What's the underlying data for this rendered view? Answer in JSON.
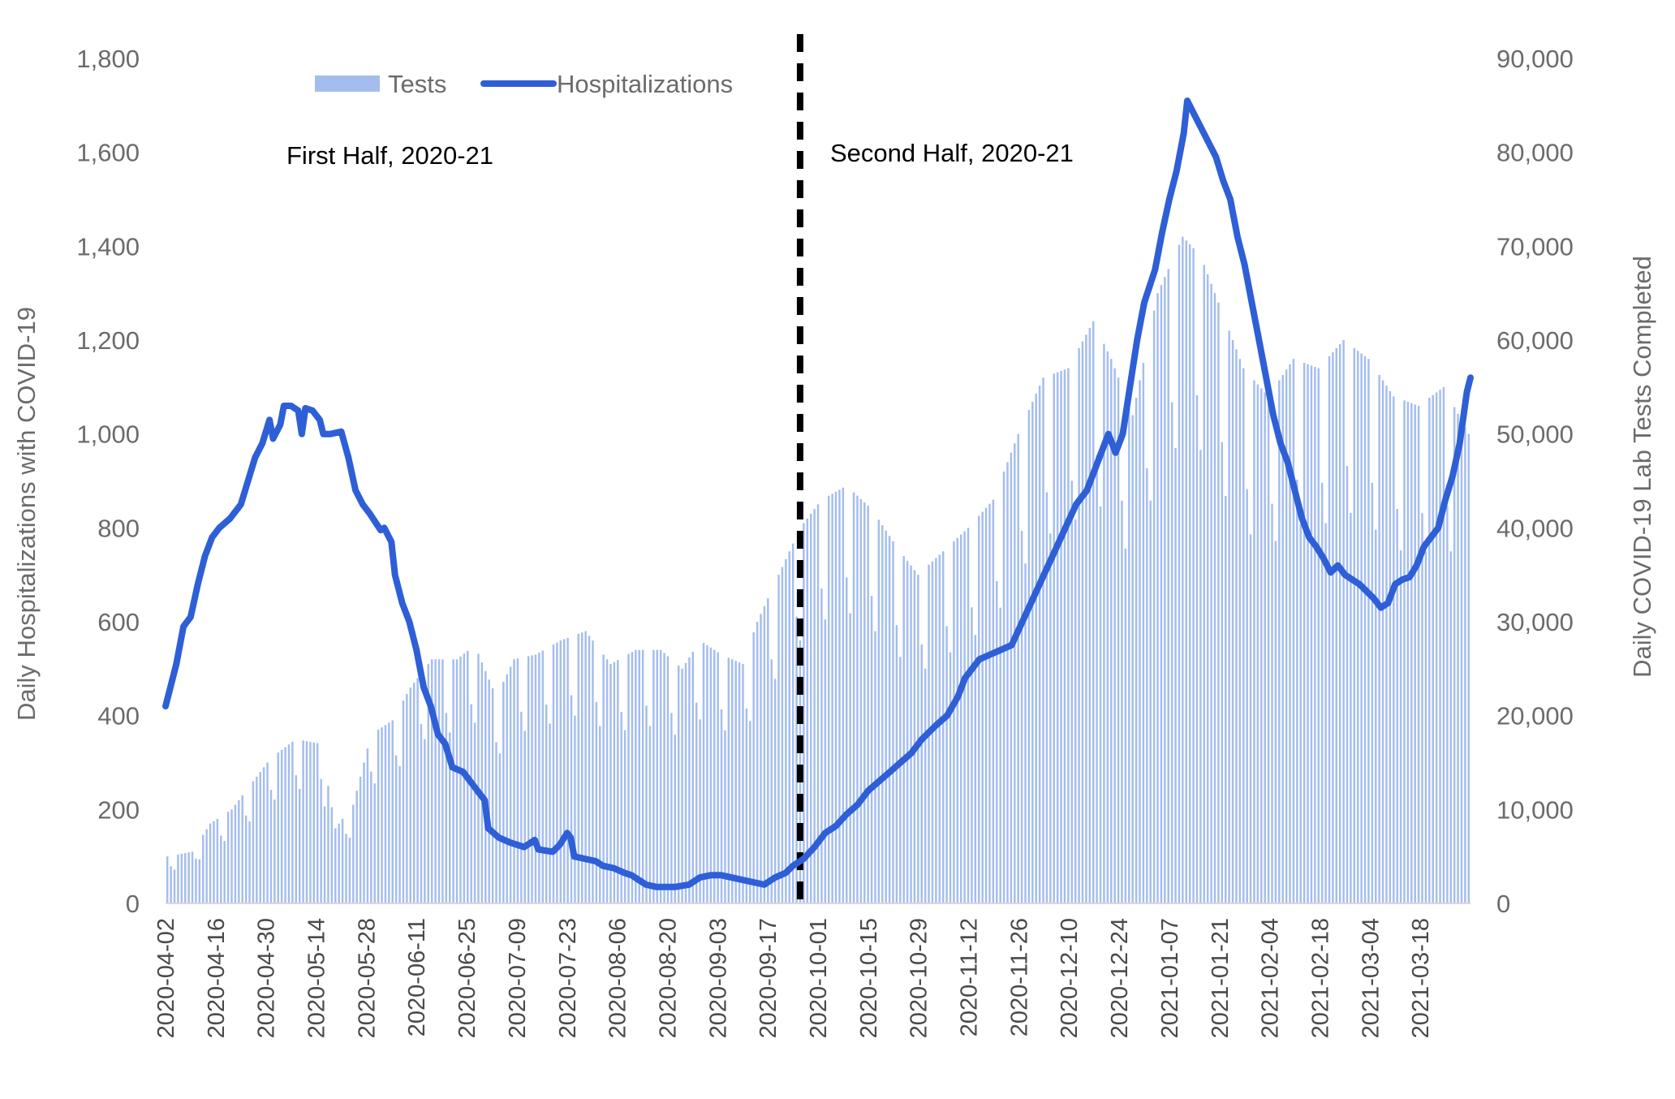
{
  "chart_data": {
    "type": "bar+line",
    "annotations": {
      "left": "First Half, 2020-21",
      "right": "Second Half, 2020-21"
    },
    "divider_date": "2020-09-26",
    "y_left": {
      "label": "Daily Hospitalizations with COVID-19",
      "range": [
        0,
        1800
      ],
      "ticks": [
        "0",
        "200",
        "400",
        "600",
        "800",
        "1,000",
        "1,200",
        "1,400",
        "1,600",
        "1,800"
      ],
      "tick_values": [
        0,
        200,
        400,
        600,
        800,
        1000,
        1200,
        1400,
        1600,
        1800
      ]
    },
    "y_right": {
      "label": "Daily COVID-19 Lab Tests Completed",
      "range": [
        0,
        90000
      ],
      "ticks": [
        "0",
        "10,000",
        "20,000",
        "30,000",
        "40,000",
        "50,000",
        "60,000",
        "70,000",
        "80,000",
        "90,000"
      ],
      "tick_values": [
        0,
        10000,
        20000,
        30000,
        40000,
        50000,
        60000,
        70000,
        80000,
        90000
      ]
    },
    "x_axis": {
      "start_date": "2020-04-02",
      "end_date": "2021-04-01",
      "tick_labels": [
        "2020-04-02",
        "2020-04-16",
        "2020-04-30",
        "2020-05-14",
        "2020-05-28",
        "2020-06-11",
        "2020-06-25",
        "2020-07-09",
        "2020-07-23",
        "2020-08-06",
        "2020-08-20",
        "2020-09-03",
        "2020-09-17",
        "2020-10-01",
        "2020-10-15",
        "2020-10-29",
        "2020-11-12",
        "2020-11-26",
        "2020-12-10",
        "2020-12-24",
        "2021-01-07",
        "2021-01-21",
        "2021-02-04",
        "2021-02-18",
        "2021-03-04",
        "2021-03-18"
      ]
    },
    "legend": [
      {
        "name": "Tests",
        "color": "#a4bdee",
        "kind": "bar"
      },
      {
        "name": "Hospitalizations",
        "color": "#2e5fd6",
        "kind": "line"
      }
    ],
    "legend_position": "top-left",
    "grid": false,
    "series": [
      {
        "name": "Tests",
        "axis": "right",
        "anchors": [
          [
            "2020-04-02",
            5000
          ],
          [
            "2020-04-09",
            5500
          ],
          [
            "2020-04-14",
            8500
          ],
          [
            "2020-04-20",
            10000
          ],
          [
            "2020-04-26",
            13000
          ],
          [
            "2020-05-01",
            15500
          ],
          [
            "2020-05-08",
            17500
          ],
          [
            "2020-05-15",
            17000
          ],
          [
            "2020-05-19",
            8000
          ],
          [
            "2020-05-24",
            10500
          ],
          [
            "2020-05-29",
            18000
          ],
          [
            "2020-06-04",
            19500
          ],
          [
            "2020-06-09",
            23000
          ],
          [
            "2020-06-15",
            26000
          ],
          [
            "2020-06-22",
            26000
          ],
          [
            "2020-06-27",
            27500
          ],
          [
            "2020-07-03",
            22000
          ],
          [
            "2020-07-08",
            26000
          ],
          [
            "2020-07-14",
            26500
          ],
          [
            "2020-07-21",
            28000
          ],
          [
            "2020-07-28",
            29000
          ],
          [
            "2020-08-04",
            25500
          ],
          [
            "2020-08-11",
            27000
          ],
          [
            "2020-08-18",
            27000
          ],
          [
            "2020-08-24",
            25000
          ],
          [
            "2020-08-29",
            28000
          ],
          [
            "2020-09-04",
            26500
          ],
          [
            "2020-09-10",
            25500
          ],
          [
            "2020-09-14",
            30000
          ],
          [
            "2020-09-20",
            35000
          ],
          [
            "2020-09-26",
            40000
          ],
          [
            "2020-10-02",
            43000
          ],
          [
            "2020-10-09",
            44500
          ],
          [
            "2020-10-16",
            42000
          ],
          [
            "2020-10-23",
            38000
          ],
          [
            "2020-10-29",
            35000
          ],
          [
            "2020-11-05",
            37500
          ],
          [
            "2020-11-12",
            40000
          ],
          [
            "2020-11-19",
            43000
          ],
          [
            "2020-11-26",
            50000
          ],
          [
            "2020-12-03",
            56000
          ],
          [
            "2020-12-10",
            57000
          ],
          [
            "2020-12-17",
            62000
          ],
          [
            "2020-12-22",
            58000
          ],
          [
            "2020-12-28",
            52000
          ],
          [
            "2021-01-04",
            65000
          ],
          [
            "2021-01-11",
            71000
          ],
          [
            "2021-01-16",
            69000
          ],
          [
            "2021-01-22",
            63000
          ],
          [
            "2021-01-28",
            57000
          ],
          [
            "2021-02-04",
            54000
          ],
          [
            "2021-02-11",
            58000
          ],
          [
            "2021-02-18",
            57000
          ],
          [
            "2021-02-25",
            60000
          ],
          [
            "2021-03-04",
            58000
          ],
          [
            "2021-03-11",
            54000
          ],
          [
            "2021-03-18",
            53000
          ],
          [
            "2021-03-25",
            55000
          ],
          [
            "2021-04-01",
            50000
          ]
        ]
      },
      {
        "name": "Hospitalizations",
        "axis": "left",
        "anchors": [
          [
            "2020-04-02",
            420
          ],
          [
            "2020-04-05",
            510
          ],
          [
            "2020-04-07",
            590
          ],
          [
            "2020-04-09",
            610
          ],
          [
            "2020-04-11",
            680
          ],
          [
            "2020-04-13",
            740
          ],
          [
            "2020-04-15",
            780
          ],
          [
            "2020-04-17",
            800
          ],
          [
            "2020-04-20",
            820
          ],
          [
            "2020-04-23",
            850
          ],
          [
            "2020-04-25",
            900
          ],
          [
            "2020-04-27",
            950
          ],
          [
            "2020-04-29",
            980
          ],
          [
            "2020-05-01",
            1030
          ],
          [
            "2020-05-02",
            990
          ],
          [
            "2020-05-04",
            1020
          ],
          [
            "2020-05-05",
            1060
          ],
          [
            "2020-05-07",
            1060
          ],
          [
            "2020-05-09",
            1050
          ],
          [
            "2020-05-10",
            1000
          ],
          [
            "2020-05-11",
            1055
          ],
          [
            "2020-05-13",
            1050
          ],
          [
            "2020-05-15",
            1030
          ],
          [
            "2020-05-16",
            1000
          ],
          [
            "2020-05-18",
            1000
          ],
          [
            "2020-05-21",
            1005
          ],
          [
            "2020-05-23",
            950
          ],
          [
            "2020-05-25",
            880
          ],
          [
            "2020-05-27",
            850
          ],
          [
            "2020-05-29",
            830
          ],
          [
            "2020-06-01",
            795
          ],
          [
            "2020-06-02",
            800
          ],
          [
            "2020-06-04",
            770
          ],
          [
            "2020-06-05",
            700
          ],
          [
            "2020-06-07",
            640
          ],
          [
            "2020-06-09",
            600
          ],
          [
            "2020-06-11",
            540
          ],
          [
            "2020-06-13",
            460
          ],
          [
            "2020-06-15",
            420
          ],
          [
            "2020-06-17",
            360
          ],
          [
            "2020-06-19",
            340
          ],
          [
            "2020-06-21",
            290
          ],
          [
            "2020-06-24",
            280
          ],
          [
            "2020-06-27",
            250
          ],
          [
            "2020-06-30",
            220
          ],
          [
            "2020-07-01",
            160
          ],
          [
            "2020-07-04",
            140
          ],
          [
            "2020-07-07",
            130
          ],
          [
            "2020-07-09",
            125
          ],
          [
            "2020-07-11",
            120
          ],
          [
            "2020-07-14",
            135
          ],
          [
            "2020-07-15",
            115
          ],
          [
            "2020-07-19",
            110
          ],
          [
            "2020-07-21",
            125
          ],
          [
            "2020-07-23",
            150
          ],
          [
            "2020-07-24",
            140
          ],
          [
            "2020-07-25",
            100
          ],
          [
            "2020-07-28",
            95
          ],
          [
            "2020-07-31",
            90
          ],
          [
            "2020-08-02",
            80
          ],
          [
            "2020-08-05",
            75
          ],
          [
            "2020-08-08",
            65
          ],
          [
            "2020-08-10",
            60
          ],
          [
            "2020-08-12",
            50
          ],
          [
            "2020-08-14",
            40
          ],
          [
            "2020-08-17",
            35
          ],
          [
            "2020-08-19",
            35
          ],
          [
            "2020-08-22",
            35
          ],
          [
            "2020-08-26",
            40
          ],
          [
            "2020-08-29",
            55
          ],
          [
            "2020-09-01",
            60
          ],
          [
            "2020-09-04",
            60
          ],
          [
            "2020-09-07",
            55
          ],
          [
            "2020-09-10",
            50
          ],
          [
            "2020-09-13",
            45
          ],
          [
            "2020-09-16",
            40
          ],
          [
            "2020-09-19",
            55
          ],
          [
            "2020-09-22",
            65
          ],
          [
            "2020-09-24",
            80
          ],
          [
            "2020-09-27",
            95
          ],
          [
            "2020-09-30",
            120
          ],
          [
            "2020-10-03",
            150
          ],
          [
            "2020-10-06",
            165
          ],
          [
            "2020-10-09",
            190
          ],
          [
            "2020-10-12",
            210
          ],
          [
            "2020-10-15",
            240
          ],
          [
            "2020-10-18",
            260
          ],
          [
            "2020-10-21",
            280
          ],
          [
            "2020-10-24",
            300
          ],
          [
            "2020-10-27",
            320
          ],
          [
            "2020-10-30",
            350
          ],
          [
            "2020-11-03",
            380
          ],
          [
            "2020-11-06",
            400
          ],
          [
            "2020-11-09",
            440
          ],
          [
            "2020-11-11",
            480
          ],
          [
            "2020-11-13",
            500
          ],
          [
            "2020-11-15",
            520
          ],
          [
            "2020-11-18",
            530
          ],
          [
            "2020-11-21",
            540
          ],
          [
            "2020-11-24",
            550
          ],
          [
            "2020-11-27",
            600
          ],
          [
            "2020-11-30",
            650
          ],
          [
            "2020-12-03",
            700
          ],
          [
            "2020-12-06",
            750
          ],
          [
            "2020-12-09",
            800
          ],
          [
            "2020-12-12",
            850
          ],
          [
            "2020-12-15",
            880
          ],
          [
            "2020-12-17",
            920
          ],
          [
            "2020-12-19",
            960
          ],
          [
            "2020-12-21",
            1000
          ],
          [
            "2020-12-23",
            960
          ],
          [
            "2020-12-25",
            1000
          ],
          [
            "2020-12-27",
            1100
          ],
          [
            "2020-12-29",
            1200
          ],
          [
            "2020-12-31",
            1280
          ],
          [
            "2021-01-03",
            1350
          ],
          [
            "2021-01-05",
            1430
          ],
          [
            "2021-01-07",
            1500
          ],
          [
            "2021-01-09",
            1560
          ],
          [
            "2021-01-11",
            1640
          ],
          [
            "2021-01-12",
            1710
          ],
          [
            "2021-01-14",
            1680
          ],
          [
            "2021-01-16",
            1650
          ],
          [
            "2021-01-18",
            1620
          ],
          [
            "2021-01-20",
            1590
          ],
          [
            "2021-01-22",
            1540
          ],
          [
            "2021-01-24",
            1500
          ],
          [
            "2021-01-26",
            1420
          ],
          [
            "2021-01-28",
            1360
          ],
          [
            "2021-01-30",
            1280
          ],
          [
            "2021-02-01",
            1200
          ],
          [
            "2021-02-03",
            1120
          ],
          [
            "2021-02-05",
            1040
          ],
          [
            "2021-02-07",
            980
          ],
          [
            "2021-02-09",
            940
          ],
          [
            "2021-02-11",
            880
          ],
          [
            "2021-02-13",
            820
          ],
          [
            "2021-02-15",
            780
          ],
          [
            "2021-02-17",
            760
          ],
          [
            "2021-02-19",
            735
          ],
          [
            "2021-02-21",
            705
          ],
          [
            "2021-02-23",
            720
          ],
          [
            "2021-02-25",
            700
          ],
          [
            "2021-02-27",
            690
          ],
          [
            "2021-03-01",
            680
          ],
          [
            "2021-03-03",
            665
          ],
          [
            "2021-03-05",
            650
          ],
          [
            "2021-03-07",
            630
          ],
          [
            "2021-03-09",
            640
          ],
          [
            "2021-03-11",
            680
          ],
          [
            "2021-03-13",
            690
          ],
          [
            "2021-03-15",
            695
          ],
          [
            "2021-03-17",
            720
          ],
          [
            "2021-03-19",
            760
          ],
          [
            "2021-03-21",
            780
          ],
          [
            "2021-03-23",
            800
          ],
          [
            "2021-03-25",
            860
          ],
          [
            "2021-03-27",
            910
          ],
          [
            "2021-03-29",
            980
          ],
          [
            "2021-03-31",
            1090
          ],
          [
            "2021-04-01",
            1120
          ]
        ]
      }
    ]
  }
}
